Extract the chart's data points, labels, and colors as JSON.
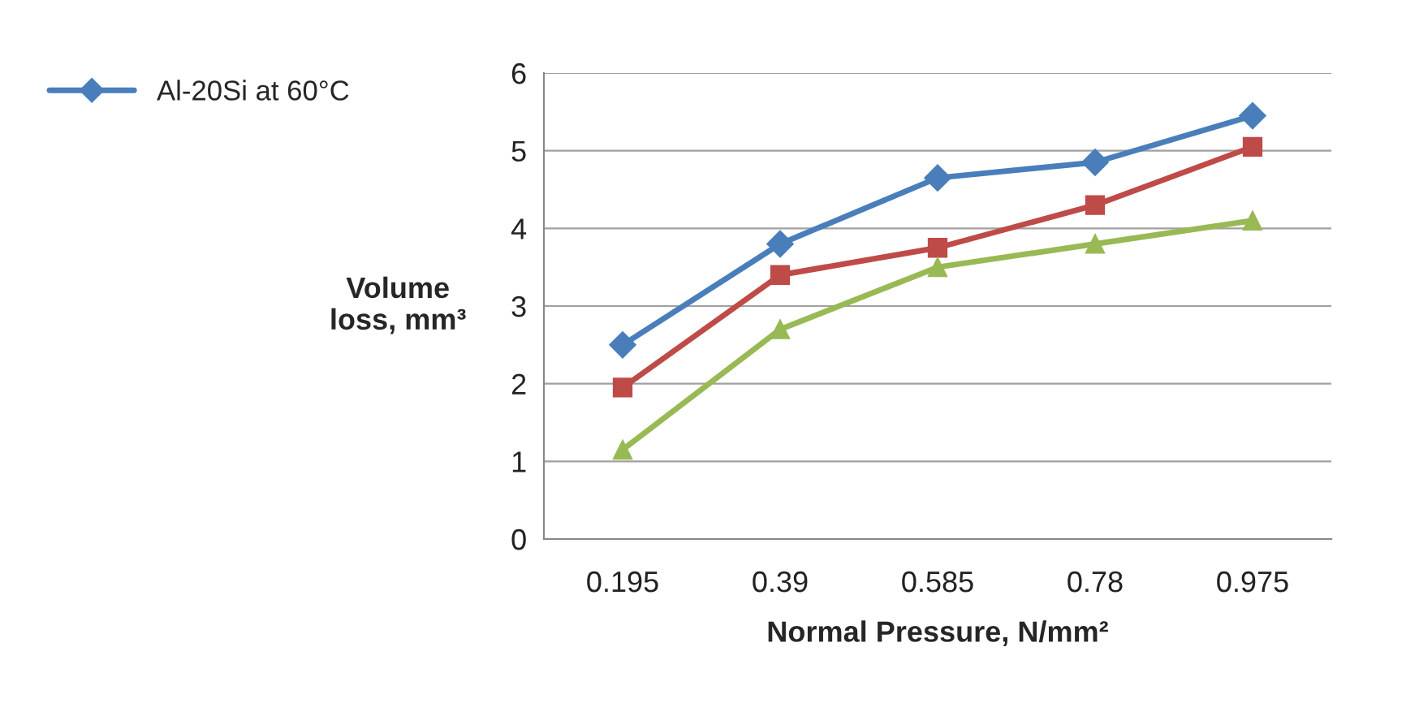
{
  "chart_data": {
    "type": "line",
    "xlabel": "Normal Pressure, N/mm²",
    "ylabel": "Volume\nloss, mm³",
    "categories": [
      "0.195",
      "0.39",
      "0.585",
      "0.78",
      "0.975"
    ],
    "series": [
      {
        "name": "Al-20Si at 60°C",
        "color": "#4a7ebb",
        "marker": "diamond",
        "values": [
          2.5,
          3.8,
          4.65,
          4.85,
          5.45
        ]
      },
      {
        "color": "#be4b48",
        "marker": "square",
        "values": [
          1.95,
          3.4,
          3.75,
          4.3,
          5.05
        ]
      },
      {
        "color": "#98b954",
        "marker": "triangle",
        "values": [
          1.15,
          2.7,
          3.5,
          3.8,
          4.1
        ]
      }
    ],
    "ylim": [
      0,
      6
    ],
    "yticks": [
      0,
      1,
      2,
      3,
      4,
      5,
      6
    ],
    "grid": "y",
    "legend": "top left",
    "line_style": "solid"
  }
}
